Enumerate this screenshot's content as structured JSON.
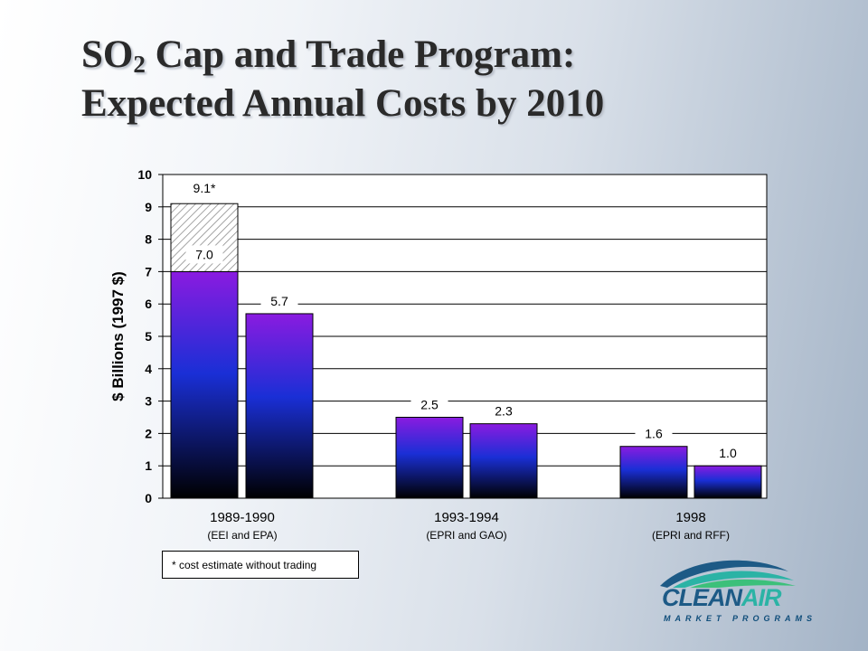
{
  "slide": {
    "title_line1_prefix": "SO",
    "title_subscript": "2",
    "title_line1_suffix": " Cap and Trade Program:",
    "title_line2": "Expected Annual Costs by 2010"
  },
  "chart_data": {
    "type": "bar",
    "ylabel": "$ Billions (1997 $)",
    "ylim": [
      0,
      10
    ],
    "yticks": [
      0,
      1,
      2,
      3,
      4,
      5,
      6,
      7,
      8,
      9,
      10
    ],
    "grid": true,
    "groups": [
      {
        "label": "1989-1990",
        "sublabel": "(EEI and EPA)"
      },
      {
        "label": "1993-1994",
        "sublabel": "(EPRI and GAO)"
      },
      {
        "label": "1998",
        "sublabel": "(EPRI and RFF)"
      }
    ],
    "bars": [
      {
        "group": 0,
        "value": 7.0,
        "label": "7.0"
      },
      {
        "group": 0,
        "value": 5.7,
        "label": "5.7"
      },
      {
        "group": 1,
        "value": 2.5,
        "label": "2.5"
      },
      {
        "group": 1,
        "value": 2.3,
        "label": "2.3"
      },
      {
        "group": 2,
        "value": 1.6,
        "label": "1.6"
      },
      {
        "group": 2,
        "value": 1.0,
        "label": "1.0"
      }
    ],
    "extension": {
      "bar": 0,
      "from": 7.0,
      "to": 9.1,
      "label": "9.1*",
      "pattern": "hatched"
    },
    "footnote": "* cost estimate without trading",
    "colors": {
      "top": "#8a1be0",
      "mid": "#1a2fd6",
      "bottom": "#000000"
    }
  },
  "logo": {
    "word_clean": "CLEAN",
    "word_air": "AIR",
    "tagline": "MARKET PROGRAMS",
    "colors": {
      "blue": "#1d5a86",
      "teal": "#2bb3a5",
      "green": "#3cc07a"
    }
  }
}
